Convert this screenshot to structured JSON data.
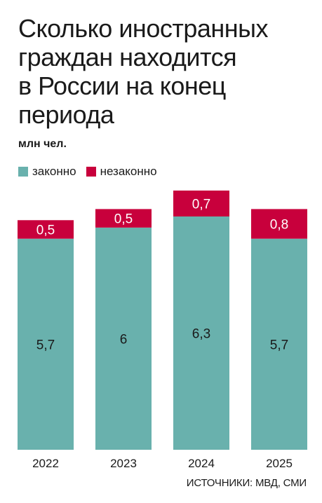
{
  "title": "Сколько иностранных\nграждан находится\nв России на конец\nпериода",
  "unit": "млн чел.",
  "source": "ИСТОЧНИКИ: МВД, СМИ",
  "colors": {
    "legal": "#69b1ad",
    "illegal": "#c8003c"
  },
  "chart_data": {
    "type": "bar",
    "stacked": true,
    "categories": [
      "2022",
      "2023",
      "2024",
      "2025"
    ],
    "series": [
      {
        "name": "законно",
        "values": [
          5.7,
          6,
          6.3,
          5.7
        ],
        "labels": [
          "5,7",
          "6",
          "6,3",
          "5,7"
        ]
      },
      {
        "name": "незаконно",
        "values": [
          0.5,
          0.5,
          0.7,
          0.8
        ],
        "labels": [
          "0,5",
          "0,5",
          "0,7",
          "0,8"
        ]
      }
    ],
    "ylim": [
      0,
      7.0
    ],
    "grid": false,
    "legend": "top-left"
  }
}
